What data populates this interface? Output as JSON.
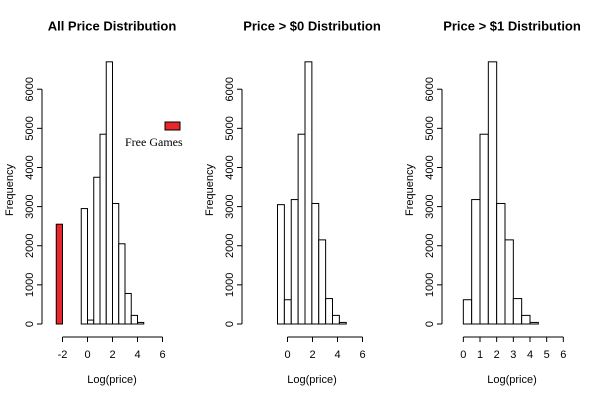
{
  "chart_data": [
    {
      "type": "histogram",
      "title": "All Price Distribution",
      "x_label": "Log(price)",
      "y_label": "Frequency",
      "xlim": [
        -3,
        7
      ],
      "ylim": [
        0,
        6900
      ],
      "xticks": [
        -2,
        0,
        2,
        4,
        6
      ],
      "yticks": [
        0,
        1000,
        2000,
        3000,
        4000,
        5000,
        6000
      ],
      "series": [
        {
          "name": "Free Games",
          "color": "#e8262b",
          "bins": [
            -2.5,
            -2
          ],
          "values": [
            2550
          ]
        },
        {
          "color": "#ffffff",
          "bins": [
            -0.5,
            0,
            0.5,
            1,
            1.5,
            2,
            2.5,
            3,
            3.5,
            4,
            4.5
          ],
          "values": [
            2950,
            100,
            3750,
            4850,
            6700,
            3080,
            2050,
            780,
            220,
            40
          ]
        }
      ]
    },
    {
      "type": "histogram",
      "title": "Price > $0 Distribution",
      "x_label": "Log(price)",
      "y_label": "Frequency",
      "xlim": [
        -3,
        7
      ],
      "ylim": [
        0,
        6900
      ],
      "xticks": [
        0,
        2,
        4,
        6
      ],
      "yticks": [
        0,
        1000,
        2000,
        3000,
        4000,
        5000,
        6000
      ],
      "series": [
        {
          "color": "#ffffff",
          "bins": [
            -0.8,
            -0.25,
            0.3,
            0.85,
            1.4,
            1.95,
            2.5,
            3.05,
            3.6,
            4.15,
            4.7
          ],
          "values": [
            3050,
            620,
            3180,
            4850,
            6700,
            3080,
            2150,
            650,
            220,
            40
          ]
        }
      ]
    },
    {
      "type": "histogram",
      "title": "Price > $1 Distribution",
      "x_label": "Log(price)",
      "y_label": "Frequency",
      "xlim": [
        -0.8,
        6.7
      ],
      "ylim": [
        0,
        6900
      ],
      "xticks": [
        0,
        1,
        2,
        3,
        4,
        5,
        6
      ],
      "yticks": [
        0,
        1000,
        2000,
        3000,
        4000,
        5000,
        6000
      ],
      "series": [
        {
          "color": "#ffffff",
          "bins": [
            0,
            0.5,
            1,
            1.5,
            2,
            2.5,
            3,
            3.5,
            4,
            4.5
          ],
          "values": [
            620,
            3180,
            4850,
            6700,
            3080,
            2150,
            650,
            220,
            40
          ]
        }
      ]
    }
  ]
}
